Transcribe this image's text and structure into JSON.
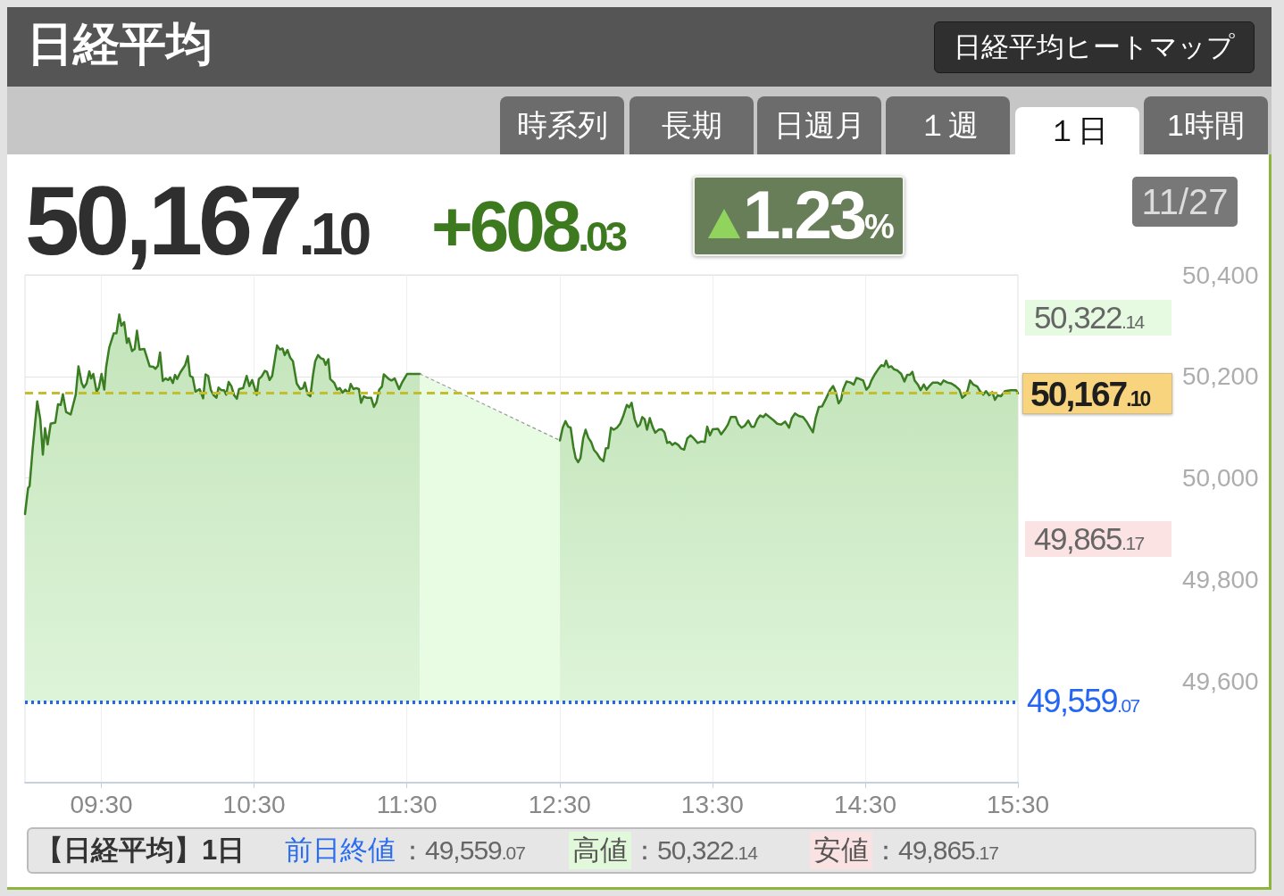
{
  "chart_data": {
    "type": "area",
    "title": "日経平均",
    "annotations": [
      "日経平均ヒートマップ",
      "時系列",
      "長期",
      "日週月",
      "１週",
      "１日",
      "1時間",
      "50,167.10",
      "+608.03",
      "1.23%",
      "11/27",
      "50,322.14",
      "49,865.17",
      "【日経平均】1日",
      "前日終値：49,559.07",
      "高値：50,322.14",
      "安値：49,865.17"
    ],
    "xlim": [
      9,
      15.5
    ],
    "xticks": [
      {
        "value": 9.5,
        "label": "09:30"
      },
      {
        "value": 10.5,
        "label": "10:30"
      },
      {
        "value": 11.5,
        "label": "11:30"
      },
      {
        "value": 12.5,
        "label": "12:30"
      },
      {
        "value": 13.5,
        "label": "13:30"
      },
      {
        "value": 14.5,
        "label": "14:30"
      },
      {
        "value": 15.5,
        "label": "15:30"
      }
    ],
    "ylim": [
      49400,
      50400
    ],
    "yticks": [
      {
        "value": 49600,
        "label": "49,600"
      },
      {
        "value": 49800,
        "label": "49,800"
      },
      {
        "value": 50000,
        "label": "50,000"
      },
      {
        "value": 50200,
        "label": "50,200"
      },
      {
        "value": 50400,
        "label": "50,400"
      }
    ],
    "grid": true,
    "ref_lines": [
      {
        "axis": "y",
        "value": 50167.1,
        "label": "50,167.10",
        "color": "#c4bd2e",
        "line_style": "dashed"
      },
      {
        "axis": "y",
        "value": 49559.07,
        "label": "49,559.07",
        "color": "#2466f2",
        "line_style": "dotted"
      }
    ],
    "series": [
      {
        "color": "#3a7d22",
        "x": [
          9.0,
          9.02,
          9.03,
          9.05,
          9.08,
          9.1,
          9.117,
          9.131,
          9.148,
          9.168,
          9.198,
          9.216,
          9.234,
          9.248,
          9.269,
          9.299,
          9.332,
          9.35,
          9.371,
          9.385,
          9.403,
          9.421,
          9.433,
          9.447,
          9.469,
          9.483,
          9.501,
          9.519,
          9.531,
          9.551,
          9.581,
          9.599,
          9.617,
          9.631,
          9.649,
          9.667,
          9.679,
          9.701,
          9.718,
          9.733,
          9.75,
          9.781,
          9.816,
          9.84,
          9.854,
          9.87,
          9.884,
          9.902,
          9.92,
          9.938,
          9.95,
          9.968,
          9.982,
          9.996,
          10.017,
          10.048,
          10.066,
          10.08,
          10.098,
          10.116,
          10.143,
          10.166,
          10.182,
          10.199,
          10.217,
          10.235,
          10.253,
          10.267,
          10.285,
          10.303,
          10.317,
          10.333,
          10.351,
          10.369,
          10.387,
          10.401,
          10.428,
          10.451,
          10.469,
          10.487,
          10.517,
          10.531,
          10.549,
          10.57,
          10.584,
          10.601,
          10.618,
          10.65,
          10.668,
          10.686,
          10.7,
          10.718,
          10.736,
          10.754,
          10.779,
          10.802,
          10.82,
          10.832,
          10.85,
          10.868,
          10.886,
          10.9,
          10.918,
          10.936,
          10.954,
          10.968,
          10.986,
          10.998,
          11.025,
          11.043,
          11.061,
          11.079,
          11.097,
          11.118,
          11.132,
          11.15,
          11.168,
          11.186,
          11.2,
          11.218,
          11.235,
          11.266,
          11.284,
          11.301,
          11.319,
          11.337,
          11.349,
          11.381,
          11.399,
          11.42,
          11.449,
          11.47,
          11.502,
          11.586
        ],
        "values": [
          49929,
          49980,
          49984,
          50057,
          50151,
          50116,
          50046,
          50098,
          50066,
          50107,
          50109,
          50145,
          50144,
          50165,
          50130,
          50125,
          50164,
          50220,
          50187,
          50178,
          50186,
          50210,
          50196,
          50205,
          50170,
          50177,
          50205,
          50174,
          50218,
          50256,
          50285,
          50285,
          50322,
          50300,
          50307,
          50266,
          50275,
          50250,
          50254,
          50290,
          50253,
          50254,
          50220,
          50219,
          50215,
          50221,
          50247,
          50191,
          50196,
          50193,
          50198,
          50187,
          50203,
          50195,
          50208,
          50222,
          50240,
          50201,
          50198,
          50170,
          50175,
          50157,
          50204,
          50201,
          50173,
          50163,
          50158,
          50178,
          50173,
          50173,
          50164,
          50189,
          50181,
          50163,
          50156,
          50175,
          50177,
          50201,
          50181,
          50193,
          50164,
          50195,
          50200,
          50211,
          50209,
          50193,
          50201,
          50261,
          50253,
          50255,
          50242,
          50252,
          50237,
          50230,
          50186,
          50175,
          50177,
          50188,
          50165,
          50161,
          50204,
          50230,
          50242,
          50236,
          50234,
          50223,
          50234,
          50195,
          50187,
          50174,
          50177,
          50168,
          50174,
          50167,
          50185,
          50175,
          50177,
          50175,
          50148,
          50161,
          50158,
          50158,
          50140,
          50149,
          50174,
          50180,
          50204,
          50195,
          50192,
          50196,
          50175,
          50189,
          50205,
          50205
        ]
      },
      {
        "color": "#9a9a9a",
        "line_style": "dotted",
        "x": [
          11.586,
          12.502
        ],
        "values": [
          50205,
          50074
        ]
      },
      {
        "color": "#3a7d22",
        "x": [
          12.502,
          12.52,
          12.538,
          12.556,
          12.572,
          12.59,
          12.605,
          12.621,
          12.636,
          12.654,
          12.67,
          12.688,
          12.706,
          12.725,
          12.745,
          12.766,
          12.787,
          12.802,
          12.818,
          12.836,
          12.854,
          12.875,
          12.896,
          12.914,
          12.94,
          12.955,
          12.971,
          12.991,
          13.01,
          13.025,
          13.041,
          13.056,
          13.072,
          13.09,
          13.108,
          13.126,
          13.147,
          13.168,
          13.186,
          13.204,
          13.22,
          13.238,
          13.256,
          13.277,
          13.295,
          13.315,
          13.336,
          13.357,
          13.378,
          13.404,
          13.427,
          13.45,
          13.466,
          13.484,
          13.502,
          13.536,
          13.557,
          13.58,
          13.601,
          13.621,
          13.653,
          13.67,
          13.691,
          13.712,
          13.735,
          13.756,
          13.774,
          13.795,
          13.813,
          13.834,
          13.849,
          13.873,
          13.899,
          13.924,
          13.95,
          13.976,
          14.002,
          14.02,
          14.041,
          14.067,
          14.093,
          14.119,
          14.14,
          14.158,
          14.176,
          14.197,
          14.218,
          14.243,
          14.27,
          14.29,
          14.308,
          14.326,
          14.342,
          14.357,
          14.378,
          14.404,
          14.425,
          14.443,
          14.464,
          14.487,
          14.508,
          14.526,
          14.541,
          14.565,
          14.585,
          14.606,
          14.624,
          14.637,
          14.653,
          14.671,
          14.689,
          14.71,
          14.736,
          14.757,
          14.775,
          14.793,
          14.809,
          14.824,
          14.845,
          14.863,
          14.884,
          14.902,
          14.923,
          14.943,
          14.974,
          14.995,
          15.013,
          15.039,
          15.065,
          15.091,
          15.117,
          15.135,
          15.156,
          15.171,
          15.187,
          15.208,
          15.234,
          15.252,
          15.273,
          15.291,
          15.312,
          15.332,
          15.35,
          15.368,
          15.389,
          15.415,
          15.454,
          15.488,
          15.5
        ],
        "values": [
          50074,
          50099,
          50112,
          50101,
          50099,
          50061,
          50039,
          50031,
          50039,
          50078,
          50095,
          50079,
          50071,
          50055,
          50048,
          50038,
          50033,
          50058,
          50059,
          50099,
          50095,
          50099,
          50107,
          50120,
          50144,
          50139,
          50148,
          50116,
          50101,
          50105,
          50120,
          50116,
          50095,
          50118,
          50101,
          50089,
          50095,
          50096,
          50090,
          50069,
          50071,
          50065,
          50069,
          50065,
          50058,
          50056,
          50078,
          50084,
          50078,
          50069,
          50072,
          50071,
          50101,
          50084,
          50096,
          50097,
          50086,
          50095,
          50105,
          50120,
          50120,
          50106,
          50099,
          50103,
          50113,
          50101,
          50101,
          50116,
          50123,
          50120,
          50126,
          50120,
          50114,
          50107,
          50105,
          50111,
          50099,
          50118,
          50127,
          50122,
          50120,
          50110,
          50099,
          50090,
          50118,
          50140,
          50141,
          50156,
          50173,
          50181,
          50169,
          50147,
          50154,
          50175,
          50190,
          50188,
          50184,
          50197,
          50195,
          50192,
          50174,
          50180,
          50192,
          50205,
          50214,
          50222,
          50220,
          50231,
          50218,
          50220,
          50214,
          50212,
          50205,
          50190,
          50203,
          50203,
          50209,
          50192,
          50184,
          50173,
          50184,
          50174,
          50182,
          50188,
          50188,
          50184,
          50192,
          50188,
          50186,
          50181,
          50174,
          50158,
          50163,
          50173,
          50192,
          50184,
          50180,
          50171,
          50164,
          50171,
          50163,
          50169,
          50154,
          50163,
          50161,
          50171,
          50173,
          50173,
          50167
        ]
      }
    ]
  }
}
